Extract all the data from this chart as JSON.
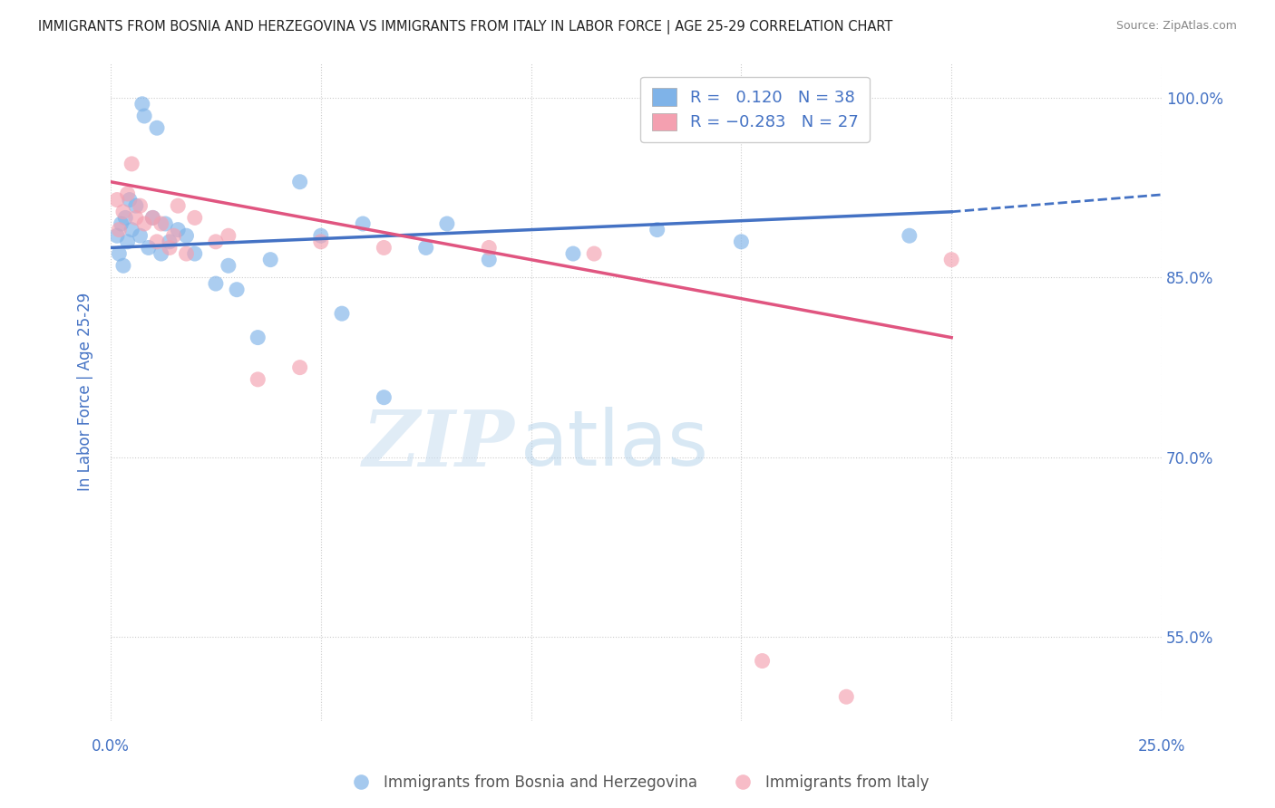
{
  "title": "IMMIGRANTS FROM BOSNIA AND HERZEGOVINA VS IMMIGRANTS FROM ITALY IN LABOR FORCE | AGE 25-29 CORRELATION CHART",
  "source": "Source: ZipAtlas.com",
  "ylabel": "In Labor Force | Age 25-29",
  "x_min": 0.0,
  "x_max": 25.0,
  "y_min": 48.0,
  "y_max": 103.0,
  "bosnia_color": "#7fb3e8",
  "italy_color": "#f4a0b0",
  "bosnia_R": 0.12,
  "bosnia_N": 38,
  "italy_R": -0.283,
  "italy_N": 27,
  "bosnia_x": [
    0.15,
    0.2,
    0.25,
    0.3,
    0.35,
    0.4,
    0.45,
    0.5,
    0.6,
    0.7,
    0.75,
    0.8,
    0.9,
    1.0,
    1.1,
    1.2,
    1.3,
    1.4,
    1.6,
    1.8,
    2.0,
    2.5,
    2.8,
    3.0,
    3.5,
    3.8,
    4.5,
    5.0,
    5.5,
    6.0,
    6.5,
    7.5,
    8.0,
    9.0,
    11.0,
    13.0,
    15.0,
    19.0
  ],
  "bosnia_y": [
    88.5,
    87.0,
    89.5,
    86.0,
    90.0,
    88.0,
    91.5,
    89.0,
    91.0,
    88.5,
    99.5,
    98.5,
    87.5,
    90.0,
    97.5,
    87.0,
    89.5,
    88.0,
    89.0,
    88.5,
    87.0,
    84.5,
    86.0,
    84.0,
    80.0,
    86.5,
    93.0,
    88.5,
    82.0,
    89.5,
    75.0,
    87.5,
    89.5,
    86.5,
    87.0,
    89.0,
    88.0,
    88.5
  ],
  "italy_x": [
    0.15,
    0.2,
    0.3,
    0.4,
    0.5,
    0.6,
    0.7,
    0.8,
    1.0,
    1.1,
    1.2,
    1.4,
    1.5,
    1.6,
    1.8,
    2.0,
    2.5,
    2.8,
    3.5,
    4.5,
    5.0,
    6.5,
    9.0,
    11.5,
    15.5,
    17.5,
    20.0
  ],
  "italy_y": [
    91.5,
    89.0,
    90.5,
    92.0,
    94.5,
    90.0,
    91.0,
    89.5,
    90.0,
    88.0,
    89.5,
    87.5,
    88.5,
    91.0,
    87.0,
    90.0,
    88.0,
    88.5,
    76.5,
    77.5,
    88.0,
    87.5,
    87.5,
    87.0,
    53.0,
    50.0,
    86.5
  ],
  "watermark_zip": "ZIP",
  "watermark_atlas": "atlas",
  "bg_color": "#ffffff",
  "grid_color": "#cccccc",
  "trend_blue_color": "#4472c4",
  "trend_pink_color": "#e05580",
  "title_color": "#222222",
  "tick_label_color": "#4472c4",
  "source_color": "#888888",
  "y_ticks": [
    55.0,
    70.0,
    85.0,
    100.0
  ],
  "y_tick_labels": [
    "55.0%",
    "70.0%",
    "85.0%",
    "100.0%"
  ],
  "x_tick_labels": [
    "0.0%",
    "25.0%"
  ],
  "legend_blue_label": "R =   0.120   N = 38",
  "legend_pink_label": "R = −0.283   N = 27",
  "bottom_label1": "Immigrants from Bosnia and Herzegovina",
  "bottom_label2": "Immigrants from Italy"
}
